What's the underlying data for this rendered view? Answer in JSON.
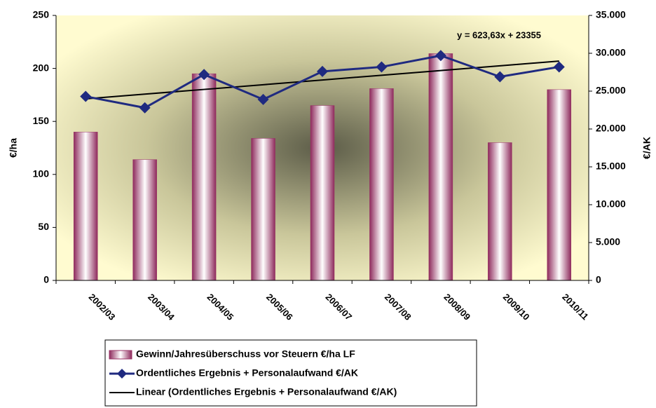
{
  "chart_data": {
    "type": "bar_line",
    "categories": [
      "2002/03",
      "2003/04",
      "2004/05",
      "2005/06",
      "2006/07",
      "2007/08",
      "2008/09",
      "2009/10",
      "2010/11"
    ],
    "series": [
      {
        "name": "Gewinn/Jahresüberschuss vor Steuern €/ha LF",
        "color": "#993366",
        "type": "bar",
        "axis": "y",
        "values": [
          140,
          114,
          195,
          134,
          165,
          181,
          214,
          130,
          180
        ]
      },
      {
        "name": "Ordentliches Ergebnis + Personalaufwand €/AK",
        "color": "#1f2a80",
        "type": "line",
        "axis": "y2",
        "values": [
          24300,
          22800,
          27200,
          23900,
          27600,
          28200,
          29700,
          26900,
          28200
        ]
      },
      {
        "name": "Linear (Ordentliches Ergebnis + Personalaufwand €/AK)",
        "color": "#000000",
        "type": "trend",
        "axis": "y2",
        "values": [
          23978.6,
          24602.3,
          25225.9,
          25849.5,
          26473.2,
          27096.8,
          27720.4,
          28344.0,
          28967.7
        ]
      }
    ],
    "annotation": "y = 623,63x + 23355",
    "ylabel": "€/ha",
    "y2label": "€/AK",
    "ylim": [
      0,
      250
    ],
    "yticks": [
      0,
      50,
      100,
      150,
      200,
      250
    ],
    "y2lim": [
      0,
      35000
    ],
    "y2ticks": [
      {
        "value": 0,
        "label": "0"
      },
      {
        "value": 5000,
        "label": "5.000"
      },
      {
        "value": 10000,
        "label": "10.000"
      },
      {
        "value": 15000,
        "label": "15.000"
      },
      {
        "value": 20000,
        "label": "20.000"
      },
      {
        "value": 25000,
        "label": "25.000"
      },
      {
        "value": 30000,
        "label": "30.000"
      },
      {
        "value": 35000,
        "label": "35.000"
      }
    ],
    "legend": "bottom"
  }
}
